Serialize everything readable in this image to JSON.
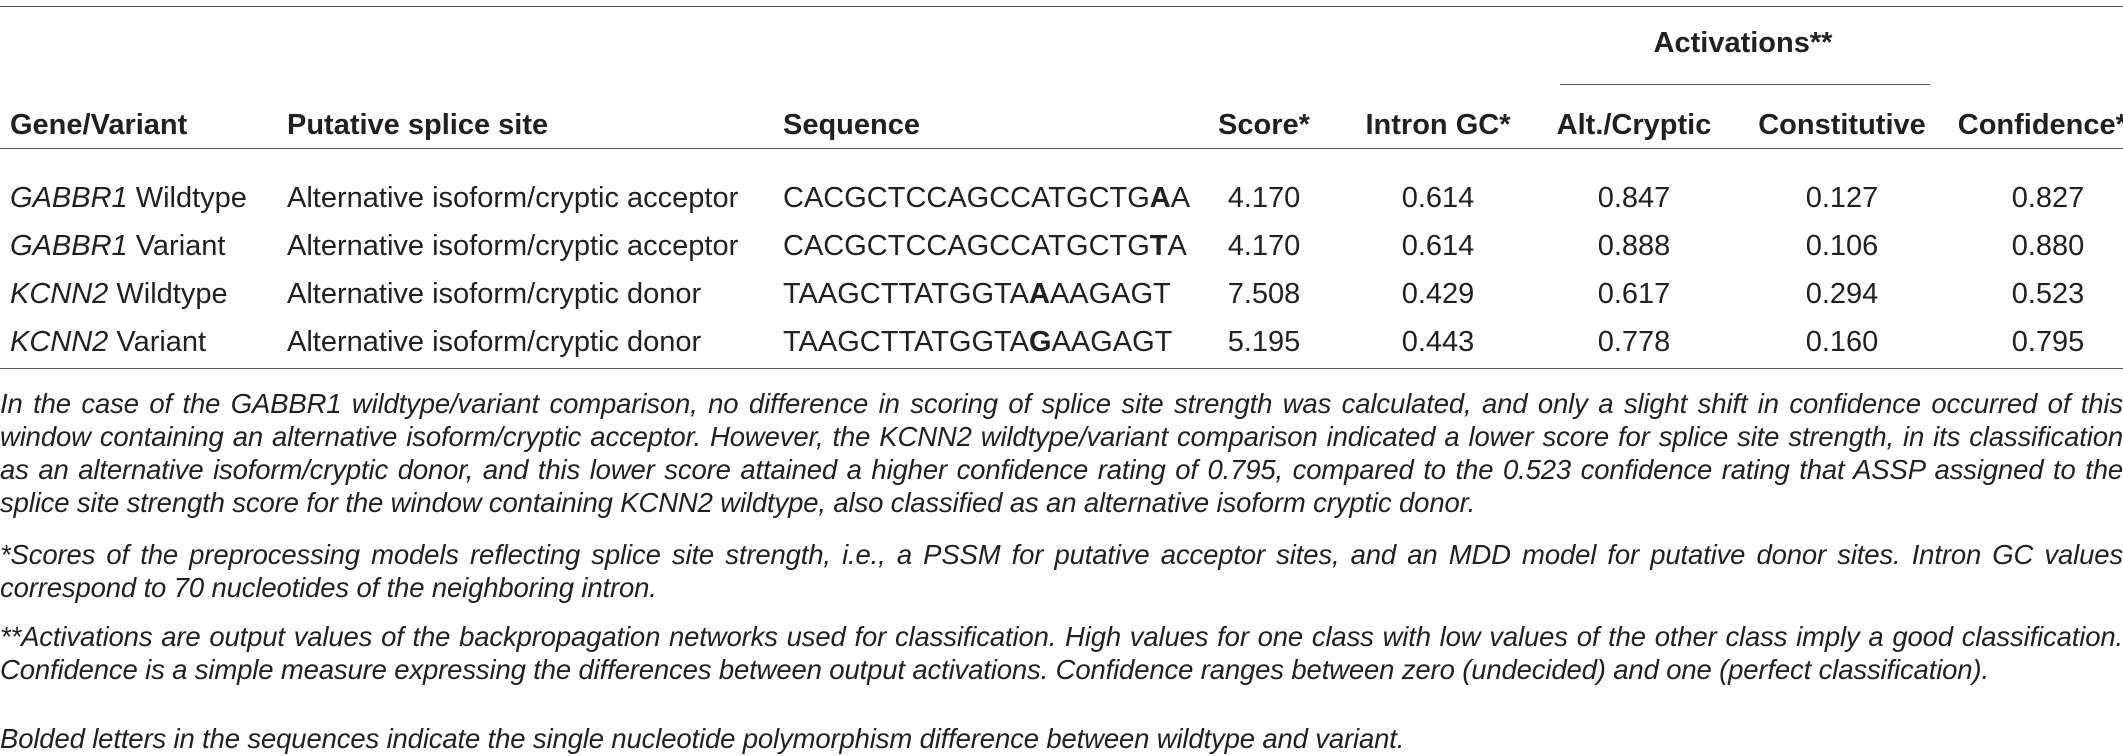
{
  "table": {
    "group_header": "Activations**",
    "headers": {
      "gene_variant": "Gene/Variant",
      "putative_splice_site": "Putative splice site",
      "sequence": "Sequence",
      "score": "Score*",
      "intron_gc": "Intron GC*",
      "alt_cryptic": "Alt./Cryptic",
      "constitutive": "Constitutive",
      "confidence": "Confidence**"
    },
    "rows": [
      {
        "gene": "GABBR1",
        "variant": "Wildtype",
        "splice_site": "Alternative isoform/cryptic acceptor",
        "seq_pre": "CACGCTCCAGCCATGCTG",
        "seq_bold": "A",
        "seq_post": "A",
        "score": "4.170",
        "intron_gc": "0.614",
        "alt_cryptic": "0.847",
        "constitutive": "0.127",
        "confidence": "0.827"
      },
      {
        "gene": "GABBR1",
        "variant": "Variant",
        "splice_site": "Alternative isoform/cryptic acceptor",
        "seq_pre": "CACGCTCCAGCCATGCTG",
        "seq_bold": "T",
        "seq_post": "A",
        "score": "4.170",
        "intron_gc": "0.614",
        "alt_cryptic": "0.888",
        "constitutive": "0.106",
        "confidence": "0.880"
      },
      {
        "gene": "KCNN2",
        "variant": "Wildtype",
        "splice_site": "Alternative isoform/cryptic donor",
        "seq_pre": "TAAGCTTATGGTA",
        "seq_bold": "A",
        "seq_post": "AAGAGT",
        "score": "7.508",
        "intron_gc": "0.429",
        "alt_cryptic": "0.617",
        "constitutive": "0.294",
        "confidence": "0.523"
      },
      {
        "gene": "KCNN2",
        "variant": "Variant",
        "splice_site": "Alternative isoform/cryptic donor",
        "seq_pre": "TAAGCTTATGGTA",
        "seq_bold": "G",
        "seq_post": "AAGAGT",
        "score": "5.195",
        "intron_gc": "0.443",
        "alt_cryptic": "0.778",
        "constitutive": "0.160",
        "confidence": "0.795"
      }
    ]
  },
  "footnotes": {
    "note1": "In the case of the GABBR1 wildtype/variant comparison, no difference in scoring of splice site strength was calculated, and only a slight shift in confidence occurred of this window containing an alternative isoform/cryptic acceptor. However, the KCNN2 wildtype/variant comparison indicated a lower score for splice site strength, in its classification as an alternative isoform/cryptic donor, and this lower score attained a higher confidence rating of 0.795, compared to the 0.523 confidence rating that ASSP assigned to the splice site strength score for the window containing KCNN2 wildtype, also classified as an alternative isoform cryptic donor.",
    "note2": "*Scores of the preprocessing models reflecting splice site strength, i.e., a PSSM for putative acceptor sites, and an MDD model for putative donor sites. Intron GC values correspond to 70 nucleotides of the neighboring intron.",
    "note3": "**Activations are output values of the backpropagation networks used for classification. High values for one class with low values of the other class imply a good classification. Confidence is a simple measure expressing the differences between output activations. Confidence ranges between zero (undecided) and one (perfect classification).",
    "note4": "Bolded letters in the sequences indicate the single nucleotide polymorphism difference between wildtype and variant."
  }
}
